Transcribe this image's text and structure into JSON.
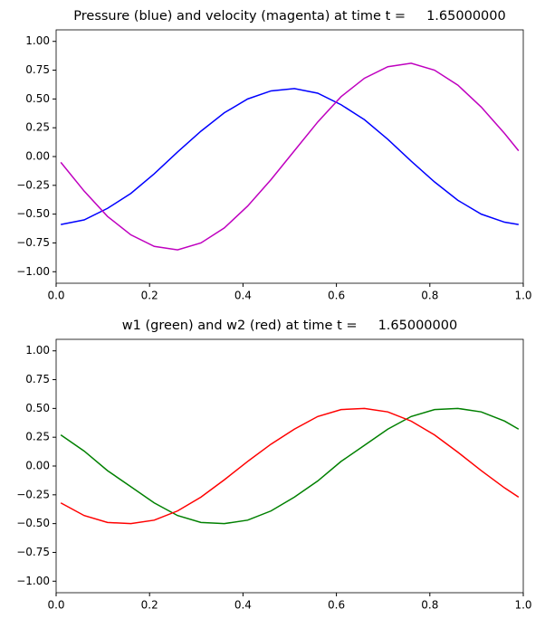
{
  "chart_data": [
    {
      "type": "line",
      "title": "Pressure (blue) and velocity (magenta) at time t =     1.65000000",
      "x": [
        0.01,
        0.06,
        0.11,
        0.16,
        0.21,
        0.26,
        0.31,
        0.36,
        0.41,
        0.46,
        0.51,
        0.56,
        0.61,
        0.66,
        0.71,
        0.76,
        0.81,
        0.86,
        0.91,
        0.96,
        0.99
      ],
      "series": [
        {
          "color": "#0000ff",
          "values": [
            -0.59,
            -0.55,
            -0.45,
            -0.32,
            -0.15,
            0.04,
            0.22,
            0.38,
            0.5,
            0.57,
            0.59,
            0.55,
            0.45,
            0.32,
            0.15,
            -0.04,
            -0.22,
            -0.38,
            -0.5,
            -0.57,
            -0.59
          ]
        },
        {
          "color": "#bf00bf",
          "values": [
            -0.05,
            -0.3,
            -0.52,
            -0.68,
            -0.78,
            -0.81,
            -0.75,
            -0.62,
            -0.43,
            -0.2,
            0.05,
            0.3,
            0.52,
            0.68,
            0.78,
            0.81,
            0.75,
            0.62,
            0.43,
            0.2,
            0.05
          ]
        }
      ],
      "xlim": [
        0,
        1
      ],
      "xticks": [
        {
          "value": 0,
          "label": "0.0"
        },
        0.2,
        0.4,
        0.6,
        0.8,
        {
          "value": 1,
          "label": "1.0"
        }
      ],
      "ylim": [
        -1.1,
        1.1
      ],
      "yticks": [
        {
          "value": -1,
          "label": "−1.00"
        },
        {
          "value": -0.75,
          "label": "−0.75"
        },
        {
          "value": -0.5,
          "label": "−0.50"
        },
        {
          "value": -0.25,
          "label": "−0.25"
        },
        {
          "value": 0,
          "label": "0.00"
        },
        0.25,
        {
          "value": 0.5,
          "label": "0.50"
        },
        0.75,
        {
          "value": 1,
          "label": "1.00"
        }
      ]
    },
    {
      "type": "line",
      "title": "w1 (green) and w2 (red) at time t =     1.65000000",
      "x": [
        0.01,
        0.06,
        0.11,
        0.16,
        0.21,
        0.26,
        0.31,
        0.36,
        0.41,
        0.46,
        0.51,
        0.56,
        0.61,
        0.66,
        0.71,
        0.76,
        0.81,
        0.86,
        0.91,
        0.96,
        0.99
      ],
      "series": [
        {
          "color": "#008000",
          "values": [
            0.27,
            0.13,
            -0.04,
            -0.18,
            -0.32,
            -0.43,
            -0.49,
            -0.5,
            -0.47,
            -0.39,
            -0.27,
            -0.13,
            0.04,
            0.18,
            0.32,
            0.43,
            0.49,
            0.5,
            0.47,
            0.39,
            0.32
          ]
        },
        {
          "color": "#ff0000",
          "values": [
            -0.32,
            -0.43,
            -0.49,
            -0.5,
            -0.47,
            -0.39,
            -0.27,
            -0.12,
            0.04,
            0.19,
            0.32,
            0.43,
            0.49,
            0.5,
            0.47,
            0.39,
            0.27,
            0.12,
            -0.04,
            -0.19,
            -0.27
          ]
        }
      ],
      "xlim": [
        0,
        1
      ],
      "xticks": [
        {
          "value": 0,
          "label": "0.0"
        },
        0.2,
        0.4,
        0.6,
        0.8,
        {
          "value": 1,
          "label": "1.0"
        }
      ],
      "ylim": [
        -1.1,
        1.1
      ],
      "yticks": [
        {
          "value": -1,
          "label": "−1.00"
        },
        {
          "value": -0.75,
          "label": "−0.75"
        },
        {
          "value": -0.5,
          "label": "−0.50"
        },
        {
          "value": -0.25,
          "label": "−0.25"
        },
        {
          "value": 0,
          "label": "0.00"
        },
        0.25,
        {
          "value": 0.5,
          "label": "0.50"
        },
        0.75,
        {
          "value": 1,
          "label": "1.00"
        }
      ]
    }
  ]
}
